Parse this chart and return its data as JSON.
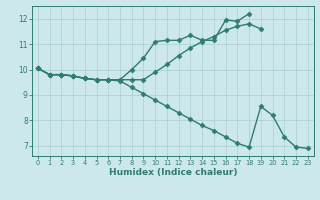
{
  "line1_x": [
    0,
    1,
    2,
    3,
    4,
    5,
    6,
    7,
    8,
    9,
    10,
    11,
    12,
    13,
    14,
    15,
    16,
    17,
    18
  ],
  "line1_y": [
    10.05,
    9.8,
    9.8,
    9.75,
    9.65,
    9.6,
    9.6,
    9.6,
    10.0,
    10.45,
    11.1,
    11.15,
    11.15,
    11.35,
    11.15,
    11.15,
    11.95,
    11.9,
    12.2
  ],
  "line2_x": [
    0,
    1,
    2,
    3,
    4,
    5,
    6,
    7,
    8,
    9,
    10,
    11,
    12,
    13,
    14,
    15,
    16,
    17,
    18,
    19
  ],
  "line2_y": [
    10.05,
    9.8,
    9.8,
    9.75,
    9.65,
    9.6,
    9.6,
    9.6,
    9.6,
    9.6,
    9.9,
    10.2,
    10.55,
    10.85,
    11.1,
    11.3,
    11.55,
    11.7,
    11.8,
    11.6
  ],
  "line3_x": [
    0,
    1,
    2,
    3,
    4,
    5,
    6,
    7,
    8,
    9,
    10,
    11,
    12,
    13,
    14,
    15,
    16,
    17,
    18,
    19,
    20,
    21,
    22,
    23
  ],
  "line3_y": [
    10.05,
    9.8,
    9.8,
    9.75,
    9.65,
    9.6,
    9.6,
    9.55,
    9.3,
    9.05,
    8.8,
    8.55,
    8.3,
    8.05,
    7.8,
    7.6,
    7.35,
    7.1,
    6.95,
    8.55,
    8.2,
    7.35,
    6.95,
    6.9
  ],
  "color": "#2e7d6e",
  "bg_color": "#cde8ec",
  "grid_color": "#aacdd4",
  "xlabel": "Humidex (Indice chaleur)",
  "xlim": [
    -0.5,
    23.5
  ],
  "ylim": [
    6.6,
    12.5
  ],
  "yticks": [
    7,
    8,
    9,
    10,
    11,
    12
  ],
  "xticks": [
    0,
    1,
    2,
    3,
    4,
    5,
    6,
    7,
    8,
    9,
    10,
    11,
    12,
    13,
    14,
    15,
    16,
    17,
    18,
    19,
    20,
    21,
    22,
    23
  ],
  "marker": "D",
  "markersize": 2.5,
  "linewidth": 1.0
}
